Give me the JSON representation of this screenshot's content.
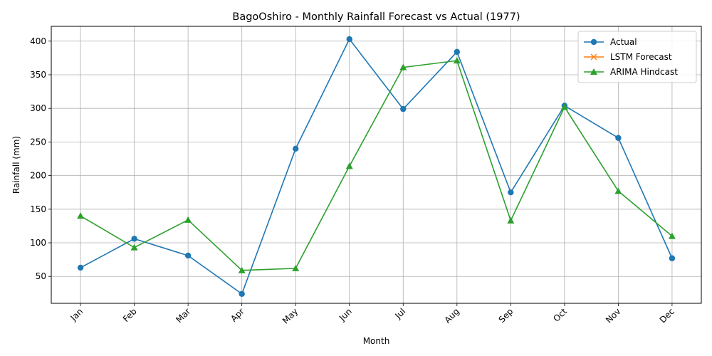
{
  "chart_data": {
    "type": "line",
    "title": "BagoOshiro - Monthly Rainfall Forecast vs Actual (1977)",
    "xlabel": "Month",
    "ylabel": "Rainfall (mm)",
    "categories": [
      "Jan",
      "Feb",
      "Mar",
      "Apr",
      "May",
      "Jun",
      "Jul",
      "Aug",
      "Sep",
      "Oct",
      "Nov",
      "Dec"
    ],
    "ylim": [
      10,
      422
    ],
    "yticks": [
      50,
      100,
      150,
      200,
      250,
      300,
      350,
      400
    ],
    "grid": true,
    "legend_position": "top-right",
    "series": [
      {
        "name": "Actual",
        "color": "#1f77b4",
        "marker": "circle",
        "values": [
          63,
          106,
          81,
          24,
          240,
          403,
          299,
          384,
          175,
          304,
          256,
          77
        ]
      },
      {
        "name": "LSTM Forecast",
        "color": "#ff7f0e",
        "marker": "x",
        "values": [
          null,
          null,
          null,
          null,
          null,
          null,
          null,
          null,
          null,
          null,
          null,
          null
        ]
      },
      {
        "name": "ARIMA Hindcast",
        "color": "#2ca02c",
        "marker": "triangle",
        "values": [
          140,
          93,
          134,
          59,
          62,
          214,
          361,
          371,
          133,
          302,
          177,
          110
        ]
      }
    ]
  }
}
